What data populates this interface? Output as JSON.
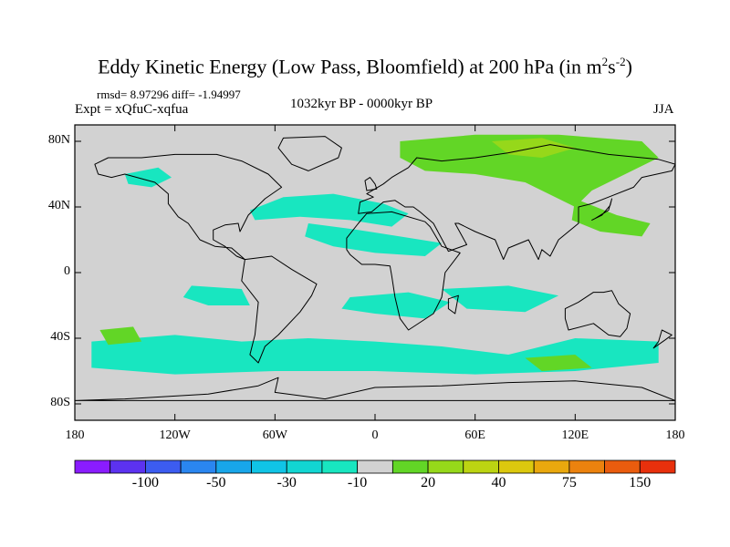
{
  "title": {
    "main": "Eddy Kinetic Energy (Low Pass, Bloomfield) at 200 hPa (in m",
    "sup1": "2",
    "mid": "s",
    "sup2": "-2",
    "end": ")"
  },
  "stats": "rmsd= 8.97296 diff= -1.94997",
  "experiment": "Expt = xQfuC-xqfua",
  "period": "1032kyr BP - 0000kyr BP",
  "season": "JJA",
  "axes": {
    "y_ticks": [
      {
        "label": "80N",
        "lat": 80
      },
      {
        "label": "40N",
        "lat": 40
      },
      {
        "label": "0",
        "lat": 0
      },
      {
        "label": "40S",
        "lat": -40
      },
      {
        "label": "80S",
        "lat": -80
      }
    ],
    "x_ticks": [
      {
        "label": "180",
        "lon": -180
      },
      {
        "label": "120W",
        "lon": -120
      },
      {
        "label": "60W",
        "lon": -60
      },
      {
        "label": "0",
        "lon": 0
      },
      {
        "label": "60E",
        "lon": 60
      },
      {
        "label": "120E",
        "lon": 120
      },
      {
        "label": "180",
        "lon": 180
      }
    ]
  },
  "colorbar": {
    "colors": [
      "#8a1cff",
      "#5c32f0",
      "#3c5cf0",
      "#2a86f0",
      "#18a6ea",
      "#10c4e6",
      "#12d6d2",
      "#18e6c0",
      "#d2d2d2",
      "#62d626",
      "#96d81a",
      "#bcd412",
      "#dcc80e",
      "#eaa80e",
      "#ec820e",
      "#ea5c0e",
      "#e8300c"
    ],
    "labels": [
      {
        "text": "-100",
        "index": 2
      },
      {
        "text": "-50",
        "index": 4
      },
      {
        "text": "-30",
        "index": 6
      },
      {
        "text": "-10",
        "index": 8
      },
      {
        "text": "20",
        "index": 10
      },
      {
        "text": "40",
        "index": 12
      },
      {
        "text": "75",
        "index": 14
      },
      {
        "text": "150",
        "index": 16
      }
    ]
  },
  "map": {
    "background_color": "#d2d2d2",
    "regions": [
      {
        "level": "-10",
        "color": "#18e6c0",
        "label": "north-pacific-anomaly",
        "coords": [
          [
            -150,
            60
          ],
          [
            -130,
            64
          ],
          [
            -122,
            58
          ],
          [
            -134,
            52
          ],
          [
            -148,
            54
          ]
        ]
      },
      {
        "level": "-10",
        "color": "#18e6c0",
        "label": "north-atlantic-band",
        "coords": [
          [
            -75,
            38
          ],
          [
            -55,
            46
          ],
          [
            -25,
            48
          ],
          [
            5,
            42
          ],
          [
            20,
            36
          ],
          [
            10,
            28
          ],
          [
            -15,
            32
          ],
          [
            -45,
            34
          ],
          [
            -72,
            32
          ]
        ]
      },
      {
        "level": "-10",
        "color": "#18e6c0",
        "label": "subtropical-atlantic-africa",
        "coords": [
          [
            -40,
            30
          ],
          [
            -10,
            26
          ],
          [
            15,
            22
          ],
          [
            40,
            18
          ],
          [
            30,
            10
          ],
          [
            0,
            12
          ],
          [
            -25,
            16
          ],
          [
            -42,
            22
          ]
        ]
      },
      {
        "level": "-10",
        "color": "#18e6c0",
        "label": "south-pacific-band",
        "coords": [
          [
            -110,
            -8
          ],
          [
            -80,
            -10
          ],
          [
            -75,
            -20
          ],
          [
            -100,
            -20
          ],
          [
            -115,
            -15
          ]
        ]
      },
      {
        "level": "-10",
        "color": "#18e6c0",
        "label": "south-atlantic-band",
        "coords": [
          [
            -15,
            -15
          ],
          [
            20,
            -12
          ],
          [
            45,
            -18
          ],
          [
            30,
            -28
          ],
          [
            0,
            -25
          ],
          [
            -20,
            -22
          ]
        ]
      },
      {
        "level": "-10",
        "color": "#18e6c0",
        "label": "southern-ocean-band",
        "coords": [
          [
            -170,
            -42
          ],
          [
            -120,
            -38
          ],
          [
            -80,
            -42
          ],
          [
            -40,
            -40
          ],
          [
            0,
            -42
          ],
          [
            40,
            -45
          ],
          [
            80,
            -50
          ],
          [
            120,
            -40
          ],
          [
            170,
            -42
          ],
          [
            170,
            -55
          ],
          [
            120,
            -60
          ],
          [
            60,
            -62
          ],
          [
            0,
            -60
          ],
          [
            -60,
            -60
          ],
          [
            -120,
            -62
          ],
          [
            -170,
            -58
          ]
        ]
      },
      {
        "level": "-10",
        "color": "#18e6c0",
        "label": "indian-ocean-patch",
        "coords": [
          [
            40,
            -10
          ],
          [
            80,
            -8
          ],
          [
            110,
            -14
          ],
          [
            90,
            -24
          ],
          [
            55,
            -22
          ]
        ]
      },
      {
        "level": "20",
        "color": "#62d626",
        "label": "eurasian-arctic-band",
        "coords": [
          [
            15,
            80
          ],
          [
            60,
            84
          ],
          [
            110,
            84
          ],
          [
            160,
            80
          ],
          [
            170,
            70
          ],
          [
            150,
            60
          ],
          [
            130,
            50
          ],
          [
            120,
            40
          ],
          [
            110,
            45
          ],
          [
            90,
            55
          ],
          [
            60,
            60
          ],
          [
            30,
            62
          ],
          [
            15,
            70
          ]
        ]
      },
      {
        "level": "20",
        "color": "#62d626",
        "label": "east-asia-extension",
        "coords": [
          [
            120,
            45
          ],
          [
            145,
            35
          ],
          [
            165,
            30
          ],
          [
            160,
            22
          ],
          [
            135,
            25
          ],
          [
            118,
            32
          ]
        ]
      },
      {
        "level": "20",
        "color": "#62d626",
        "label": "south-pacific-positive",
        "coords": [
          [
            -165,
            -35
          ],
          [
            -145,
            -33
          ],
          [
            -140,
            -42
          ],
          [
            -160,
            -44
          ]
        ]
      },
      {
        "level": "20",
        "color": "#62d626",
        "label": "south-indian-positive",
        "coords": [
          [
            90,
            -52
          ],
          [
            120,
            -50
          ],
          [
            130,
            -58
          ],
          [
            100,
            -60
          ]
        ]
      },
      {
        "level": "40",
        "color": "#96d81a",
        "label": "siberia-peak",
        "coords": [
          [
            70,
            80
          ],
          [
            100,
            82
          ],
          [
            120,
            76
          ],
          [
            100,
            70
          ],
          [
            80,
            72
          ]
        ]
      }
    ],
    "continents": [
      {
        "name": "north-america",
        "coords": [
          [
            -168,
            66
          ],
          [
            -160,
            70
          ],
          [
            -140,
            70
          ],
          [
            -120,
            72
          ],
          [
            -95,
            72
          ],
          [
            -80,
            68
          ],
          [
            -64,
            60
          ],
          [
            -56,
            52
          ],
          [
            -66,
            45
          ],
          [
            -76,
            35
          ],
          [
            -81,
            25
          ],
          [
            -82,
            30
          ],
          [
            -90,
            29
          ],
          [
            -97,
            26
          ],
          [
            -97,
            20
          ],
          [
            -90,
            16
          ],
          [
            -83,
            10
          ],
          [
            -78,
            8
          ],
          [
            -86,
            15
          ],
          [
            -96,
            16
          ],
          [
            -105,
            20
          ],
          [
            -112,
            30
          ],
          [
            -118,
            34
          ],
          [
            -124,
            42
          ],
          [
            -124,
            48
          ],
          [
            -132,
            55
          ],
          [
            -150,
            60
          ],
          [
            -158,
            58
          ],
          [
            -166,
            60
          ]
        ]
      },
      {
        "name": "greenland",
        "coords": [
          [
            -55,
            82
          ],
          [
            -30,
            83
          ],
          [
            -20,
            76
          ],
          [
            -22,
            70
          ],
          [
            -40,
            62
          ],
          [
            -50,
            66
          ],
          [
            -58,
            76
          ]
        ]
      },
      {
        "name": "south-america",
        "coords": [
          [
            -78,
            8
          ],
          [
            -62,
            10
          ],
          [
            -50,
            2
          ],
          [
            -35,
            -7
          ],
          [
            -38,
            -14
          ],
          [
            -45,
            -24
          ],
          [
            -58,
            -38
          ],
          [
            -66,
            -45
          ],
          [
            -70,
            -55
          ],
          [
            -75,
            -50
          ],
          [
            -72,
            -38
          ],
          [
            -70,
            -18
          ],
          [
            -80,
            -5
          ]
        ]
      },
      {
        "name": "africa",
        "coords": [
          [
            -17,
            14
          ],
          [
            -17,
            21
          ],
          [
            -10,
            30
          ],
          [
            -5,
            36
          ],
          [
            10,
            37
          ],
          [
            30,
            31
          ],
          [
            33,
            28
          ],
          [
            40,
            16
          ],
          [
            51,
            12
          ],
          [
            42,
            0
          ],
          [
            40,
            -15
          ],
          [
            35,
            -25
          ],
          [
            20,
            -35
          ],
          [
            15,
            -28
          ],
          [
            12,
            -15
          ],
          [
            10,
            -2
          ],
          [
            9,
            4
          ],
          [
            0,
            5
          ],
          [
            -8,
            5
          ],
          [
            -15,
            11
          ]
        ]
      },
      {
        "name": "eurasia",
        "coords": [
          [
            -10,
            36
          ],
          [
            -9,
            43
          ],
          [
            -1,
            46
          ],
          [
            -5,
            48
          ],
          [
            5,
            54
          ],
          [
            10,
            58
          ],
          [
            20,
            64
          ],
          [
            25,
            70
          ],
          [
            40,
            68
          ],
          [
            60,
            70
          ],
          [
            80,
            73
          ],
          [
            105,
            78
          ],
          [
            140,
            72
          ],
          [
            170,
            69
          ],
          [
            180,
            66
          ],
          [
            178,
            62
          ],
          [
            160,
            58
          ],
          [
            155,
            52
          ],
          [
            140,
            46
          ],
          [
            130,
            42
          ],
          [
            122,
            40
          ],
          [
            122,
            30
          ],
          [
            110,
            20
          ],
          [
            105,
            10
          ],
          [
            100,
            14
          ],
          [
            98,
            8
          ],
          [
            92,
            20
          ],
          [
            80,
            15
          ],
          [
            77,
            8
          ],
          [
            72,
            20
          ],
          [
            60,
            25
          ],
          [
            56,
            27
          ],
          [
            50,
            30
          ],
          [
            48,
            30
          ],
          [
            55,
            17
          ],
          [
            44,
            13
          ],
          [
            35,
            30
          ],
          [
            27,
            37
          ],
          [
            23,
            40
          ],
          [
            18,
            40
          ],
          [
            12,
            44
          ],
          [
            5,
            43
          ],
          [
            -2,
            37
          ]
        ]
      },
      {
        "name": "australia",
        "coords": [
          [
            114,
            -22
          ],
          [
            122,
            -18
          ],
          [
            131,
            -12
          ],
          [
            137,
            -12
          ],
          [
            142,
            -11
          ],
          [
            146,
            -19
          ],
          [
            153,
            -25
          ],
          [
            151,
            -34
          ],
          [
            147,
            -39
          ],
          [
            140,
            -38
          ],
          [
            131,
            -31
          ],
          [
            116,
            -35
          ],
          [
            114,
            -28
          ]
        ]
      },
      {
        "name": "antarctica",
        "coords": [
          [
            -180,
            -78
          ],
          [
            -150,
            -77
          ],
          [
            -100,
            -74
          ],
          [
            -70,
            -69
          ],
          [
            -58,
            -64
          ],
          [
            -60,
            -73
          ],
          [
            -30,
            -77
          ],
          [
            0,
            -70
          ],
          [
            40,
            -69
          ],
          [
            80,
            -67
          ],
          [
            120,
            -66
          ],
          [
            160,
            -70
          ],
          [
            180,
            -78
          ]
        ]
      },
      {
        "name": "uk",
        "coords": [
          [
            -5,
            50
          ],
          [
            1,
            51
          ],
          [
            0,
            54
          ],
          [
            -3,
            58
          ],
          [
            -6,
            56
          ]
        ]
      },
      {
        "name": "madagascar",
        "coords": [
          [
            44,
            -16
          ],
          [
            50,
            -14
          ],
          [
            48,
            -25
          ],
          [
            44,
            -22
          ]
        ]
      },
      {
        "name": "japan",
        "coords": [
          [
            130,
            32
          ],
          [
            136,
            35
          ],
          [
            141,
            41
          ],
          [
            142,
            45
          ],
          [
            140,
            38
          ],
          [
            132,
            33
          ]
        ]
      },
      {
        "name": "new-zealand",
        "coords": [
          [
            172,
            -35
          ],
          [
            178,
            -38
          ],
          [
            174,
            -41
          ],
          [
            167,
            -46
          ],
          [
            170,
            -42
          ]
        ]
      }
    ]
  }
}
